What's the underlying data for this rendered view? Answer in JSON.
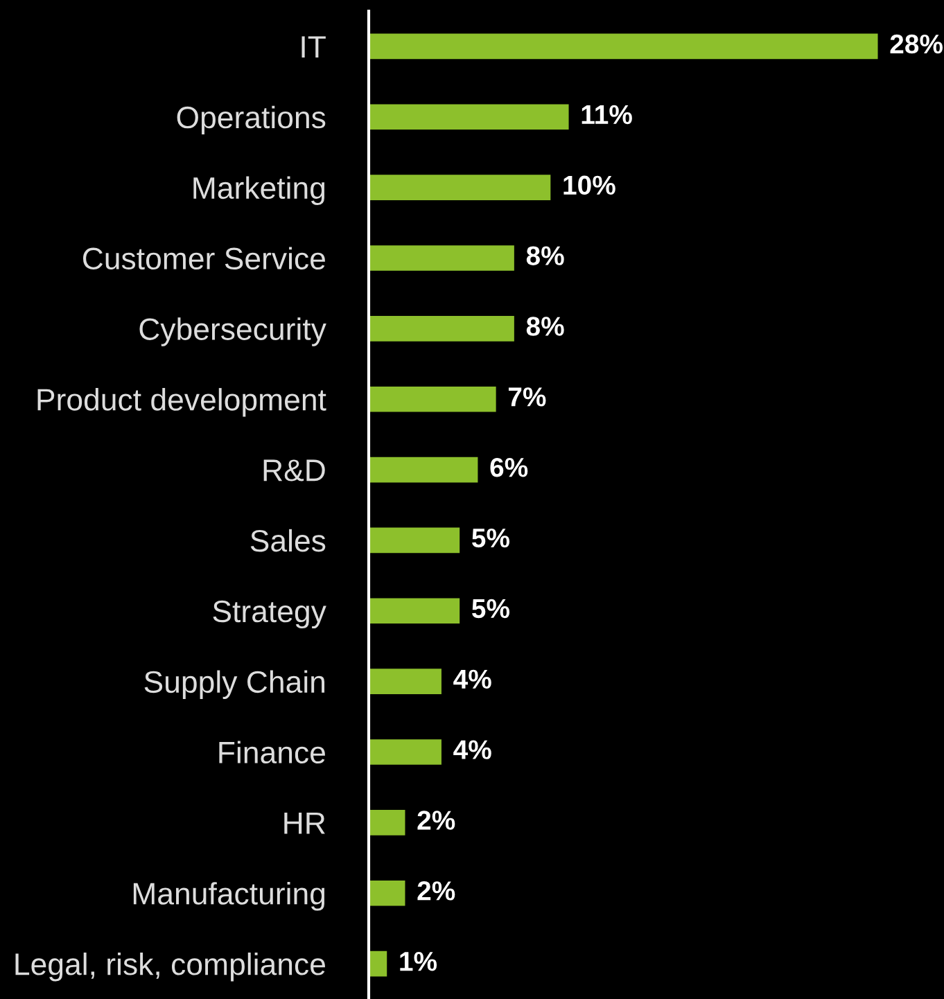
{
  "chart_data": {
    "type": "bar",
    "orientation": "horizontal",
    "categories": [
      "IT",
      "Operations",
      "Marketing",
      "Customer Service",
      "Cybersecurity",
      "Product development",
      "R&D",
      "Sales",
      "Strategy",
      "Supply Chain",
      "Finance",
      "HR",
      "Manufacturing",
      "Legal, risk, compliance"
    ],
    "values": [
      28,
      11,
      10,
      8,
      8,
      7,
      6,
      5,
      5,
      4,
      4,
      2,
      2,
      1
    ],
    "value_labels": [
      "28%",
      "11%",
      "10%",
      "8%",
      "8%",
      "7%",
      "6%",
      "5%",
      "5%",
      "4%",
      "4%",
      "2%",
      "2%",
      "1%"
    ],
    "color": "#8dc02c",
    "grid": false,
    "legend": false
  }
}
